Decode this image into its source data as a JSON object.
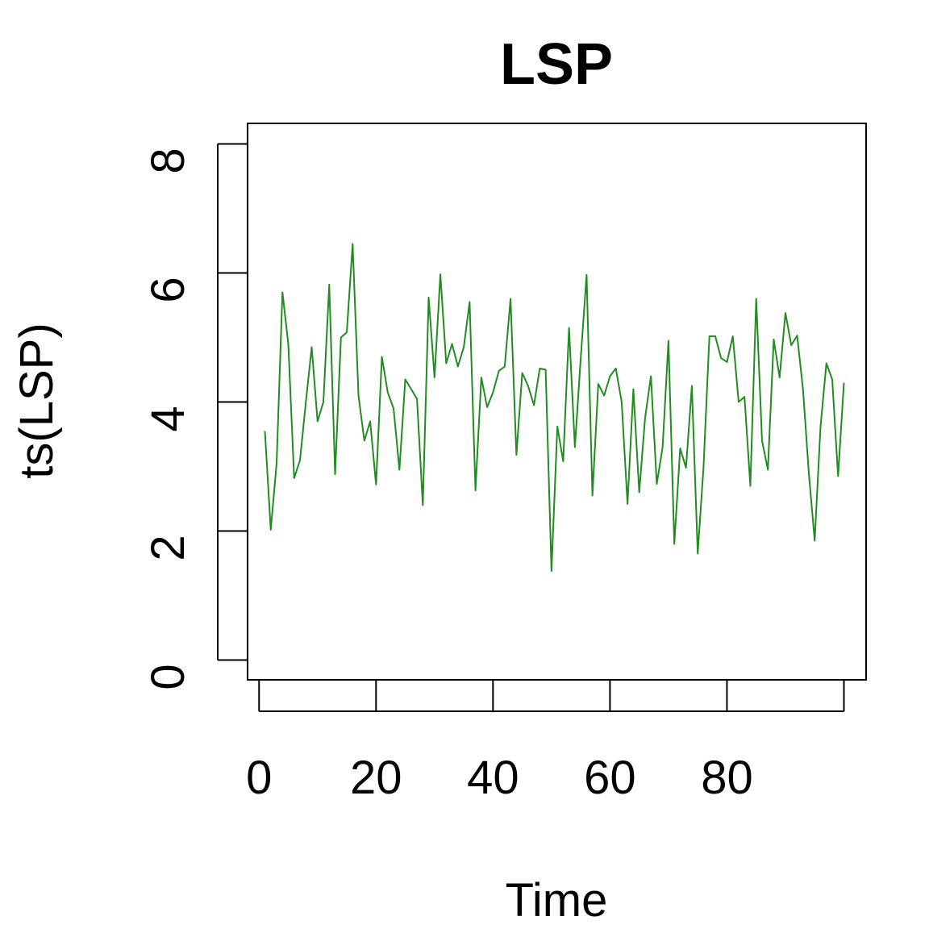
{
  "chart_data": {
    "type": "line",
    "title": "LSP",
    "xlabel": "Time",
    "ylabel": "ts(LSP)",
    "xlim": [
      1,
      100
    ],
    "ylim": [
      0,
      8
    ],
    "x_ticks": [
      0,
      20,
      40,
      60,
      80
    ],
    "x_tick_labels": [
      "0",
      "20",
      "40",
      "60",
      "80"
    ],
    "x_axis_range": [
      0,
      100
    ],
    "y_ticks": [
      0,
      2,
      4,
      6,
      8
    ],
    "y_tick_labels": [
      "0",
      "2",
      "4",
      "6",
      "8"
    ],
    "grid": false,
    "color": "#228B22",
    "series": [
      {
        "x_start": 1,
        "x_step": 1,
        "values": [
          3.55,
          2.02,
          3.05,
          5.7,
          4.9,
          2.82,
          3.1,
          4.0,
          4.85,
          3.7,
          4.0,
          5.82,
          2.88,
          5.0,
          5.08,
          6.45,
          4.1,
          3.4,
          3.7,
          2.72,
          4.7,
          4.15,
          3.9,
          2.95,
          4.35,
          4.2,
          4.05,
          2.4,
          5.62,
          4.38,
          5.98,
          4.6,
          4.9,
          4.55,
          4.85,
          5.55,
          2.63,
          4.38,
          3.92,
          4.15,
          4.48,
          4.55,
          5.6,
          3.18,
          4.45,
          4.25,
          3.95,
          4.52,
          4.5,
          1.38,
          3.62,
          3.08,
          5.15,
          3.3,
          4.68,
          5.97,
          2.55,
          4.28,
          4.1,
          4.4,
          4.52,
          4.0,
          2.42,
          4.2,
          2.6,
          3.75,
          4.4,
          2.73,
          3.3,
          4.95,
          1.8,
          3.28,
          2.98,
          4.25,
          1.65,
          3.0,
          5.02,
          5.02,
          4.68,
          4.62,
          5.02,
          4.0,
          4.08,
          2.7,
          5.6,
          3.4,
          2.95,
          4.97,
          4.38,
          5.38,
          4.88,
          5.03,
          4.2,
          2.9,
          1.85,
          3.62,
          4.6,
          4.35,
          2.85,
          4.3
        ]
      }
    ]
  }
}
